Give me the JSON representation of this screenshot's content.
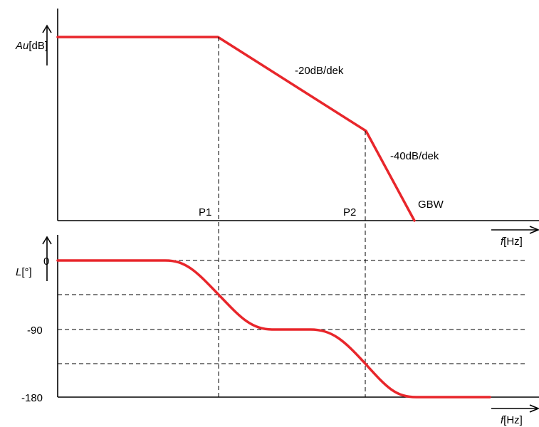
{
  "colors": {
    "curve": "#e8262b",
    "axis": "#000000"
  },
  "magnitude": {
    "y_label_italic": "Au",
    "y_label_unit": "[dB]",
    "slope1": "-20dB/dek",
    "slope2": "-40dB/dek",
    "x_marks": {
      "p1": "P1",
      "p2": "P2",
      "gbw": "GBW"
    },
    "x_label_italic": "f",
    "x_label_unit": "[Hz]"
  },
  "phase": {
    "y_label_italic": "L",
    "y_label_unit": "[°]",
    "ticks": [
      "0",
      "-90",
      "-180"
    ],
    "x_label_italic": "f",
    "x_label_unit": "[Hz]"
  }
}
